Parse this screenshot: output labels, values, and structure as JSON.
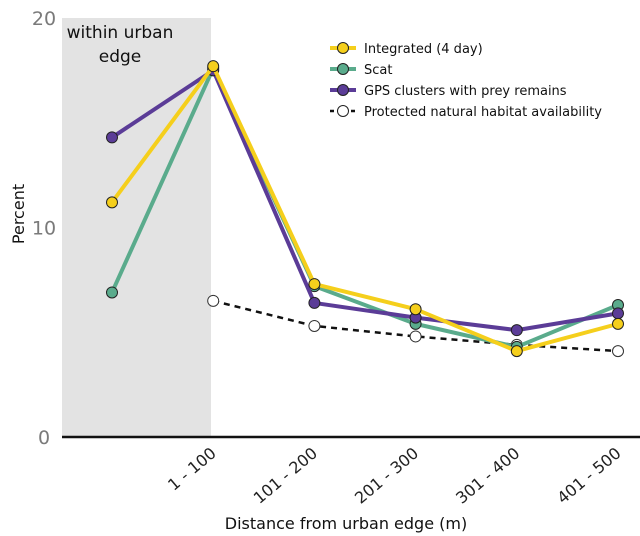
{
  "chart_data": {
    "type": "line",
    "xlabel": "Distance from urban edge (m)",
    "ylabel": "Percent",
    "ylim": [
      0,
      20
    ],
    "yticks": [
      0,
      10,
      20
    ],
    "shaded_region_label": [
      "within urban",
      "edge"
    ],
    "categories": [
      "",
      "1 - 100",
      "101 - 200",
      "201 - 300",
      "301 - 400",
      "401 - 500"
    ],
    "series": [
      {
        "name": "Integrated (4 day)",
        "color": "#f5cf1c",
        "style": "solid",
        "marker_fill": "#f5cf1c",
        "values": [
          11.2,
          17.7,
          7.3,
          6.1,
          4.1,
          5.4
        ]
      },
      {
        "name": "Scat",
        "color": "#5aab8c",
        "style": "solid",
        "marker_fill": "#5aab8c",
        "values": [
          6.9,
          17.6,
          7.2,
          5.4,
          4.3,
          6.3
        ]
      },
      {
        "name": "GPS clusters with prey remains",
        "color": "#5b3c97",
        "style": "solid",
        "marker_fill": "#5b3c97",
        "values": [
          14.3,
          17.5,
          6.4,
          5.7,
          5.1,
          5.9
        ]
      },
      {
        "name": "Protected natural habitat availability",
        "color": "#111111",
        "style": "dashed",
        "marker_fill": "#ffffff",
        "values": [
          null,
          6.5,
          5.3,
          4.8,
          4.4,
          4.1
        ]
      }
    ],
    "grid": false,
    "legend_position": "top-right"
  }
}
